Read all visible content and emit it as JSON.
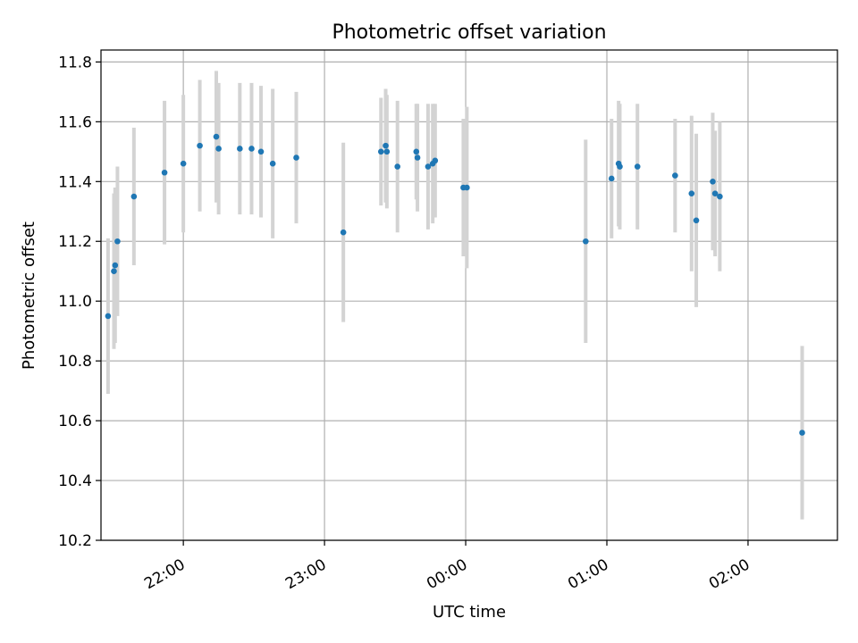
{
  "chart_data": {
    "type": "scatter",
    "title": "Photometric offset variation",
    "xlabel": "UTC time",
    "ylabel": "Photometric offset",
    "grid": true,
    "xlim": [
      "21:25",
      "02:38"
    ],
    "ylim": [
      10.2,
      11.84
    ],
    "x_ticks": [
      {
        "label": "22:00",
        "value": "22:00"
      },
      {
        "label": "23:00",
        "value": "23:00"
      },
      {
        "label": "00:00",
        "value": "00:00"
      },
      {
        "label": "01:00",
        "value": "01:00"
      },
      {
        "label": "02:00",
        "value": "02:00"
      }
    ],
    "y_ticks": [
      {
        "label": "10.2",
        "value": 10.2
      },
      {
        "label": "10.4",
        "value": 10.4
      },
      {
        "label": "10.6",
        "value": 10.6
      },
      {
        "label": "10.8",
        "value": 10.8
      },
      {
        "label": "11.0",
        "value": 11.0
      },
      {
        "label": "11.2",
        "value": 11.2
      },
      {
        "label": "11.4",
        "value": 11.4
      },
      {
        "label": "11.6",
        "value": 11.6
      },
      {
        "label": "11.8",
        "value": 11.8
      }
    ],
    "colors": {
      "point": "#1f77b4",
      "errorbar": "#d3d3d3",
      "grid": "#b0b0b0",
      "axis": "#000000"
    },
    "points": [
      {
        "time": "21:28",
        "y": 10.95,
        "yerr": 0.26
      },
      {
        "time": "21:30:30",
        "y": 11.1,
        "yerr": 0.26
      },
      {
        "time": "21:31",
        "y": 11.12,
        "yerr": 0.26
      },
      {
        "time": "21:32",
        "y": 11.2,
        "yerr": 0.25
      },
      {
        "time": "21:39",
        "y": 11.35,
        "yerr": 0.23
      },
      {
        "time": "21:52",
        "y": 11.43,
        "yerr": 0.24
      },
      {
        "time": "22:00",
        "y": 11.46,
        "yerr": 0.23
      },
      {
        "time": "22:07",
        "y": 11.52,
        "yerr": 0.22
      },
      {
        "time": "22:14",
        "y": 11.55,
        "yerr": 0.22
      },
      {
        "time": "22:15",
        "y": 11.51,
        "yerr": 0.22
      },
      {
        "time": "22:24",
        "y": 11.51,
        "yerr": 0.22
      },
      {
        "time": "22:29",
        "y": 11.51,
        "yerr": 0.22
      },
      {
        "time": "22:33",
        "y": 11.5,
        "yerr": 0.22
      },
      {
        "time": "22:38",
        "y": 11.46,
        "yerr": 0.25
      },
      {
        "time": "22:48",
        "y": 11.48,
        "yerr": 0.22
      },
      {
        "time": "23:08",
        "y": 11.23,
        "yerr": 0.3
      },
      {
        "time": "23:24",
        "y": 11.5,
        "yerr": 0.18
      },
      {
        "time": "23:26",
        "y": 11.52,
        "yerr": 0.19
      },
      {
        "time": "23:26:30",
        "y": 11.5,
        "yerr": 0.19
      },
      {
        "time": "23:31",
        "y": 11.45,
        "yerr": 0.22
      },
      {
        "time": "23:39",
        "y": 11.5,
        "yerr": 0.16
      },
      {
        "time": "23:39:30",
        "y": 11.48,
        "yerr": 0.18
      },
      {
        "time": "23:44",
        "y": 11.45,
        "yerr": 0.21
      },
      {
        "time": "23:46",
        "y": 11.46,
        "yerr": 0.2
      },
      {
        "time": "23:47",
        "y": 11.47,
        "yerr": 0.19
      },
      {
        "time": "23:59",
        "y": 11.38,
        "yerr": 0.23
      },
      {
        "time": "00:00:30",
        "y": 11.38,
        "yerr": 0.27
      },
      {
        "time": "00:51",
        "y": 11.2,
        "yerr": 0.34
      },
      {
        "time": "01:02",
        "y": 11.41,
        "yerr": 0.2
      },
      {
        "time": "01:05",
        "y": 11.46,
        "yerr": 0.21
      },
      {
        "time": "01:05:30",
        "y": 11.45,
        "yerr": 0.21
      },
      {
        "time": "01:13",
        "y": 11.45,
        "yerr": 0.21
      },
      {
        "time": "01:29",
        "y": 11.42,
        "yerr": 0.19
      },
      {
        "time": "01:36",
        "y": 11.36,
        "yerr": 0.26
      },
      {
        "time": "01:38",
        "y": 11.27,
        "yerr": 0.29
      },
      {
        "time": "01:45",
        "y": 11.4,
        "yerr": 0.23
      },
      {
        "time": "01:46",
        "y": 11.36,
        "yerr": 0.21
      },
      {
        "time": "01:48",
        "y": 11.35,
        "yerr": 0.25
      },
      {
        "time": "02:23",
        "y": 10.56,
        "yerr": 0.29
      }
    ]
  }
}
